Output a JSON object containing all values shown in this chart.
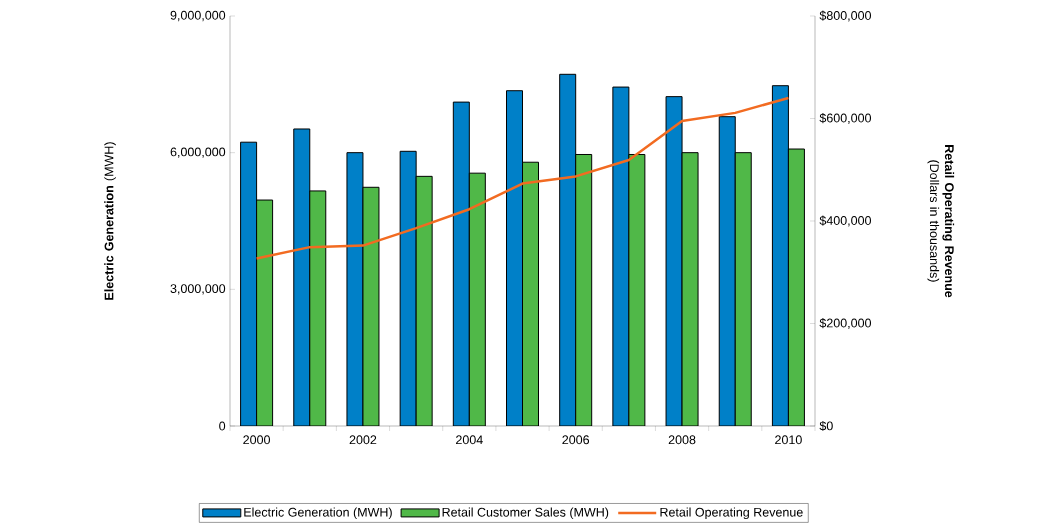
{
  "chart_data": {
    "type": "bar",
    "categories": [
      "2000",
      null,
      "2002",
      null,
      "2004",
      null,
      "2006",
      null,
      "2008",
      null,
      "2010"
    ],
    "series": [
      {
        "name": "Electric Generation (MWH)",
        "color": "#0080c8",
        "values": [
          6230000,
          6520000,
          6000000,
          6030000,
          7110000,
          7360000,
          7720000,
          7440000,
          7230000,
          6790000,
          7470000
        ]
      },
      {
        "name": "Retail Customer Sales (MWH)",
        "color": "#50b848",
        "values": [
          4960000,
          5160000,
          5240000,
          5480000,
          5550000,
          5790000,
          5960000,
          5960000,
          6000000,
          6000000,
          6080000
        ]
      },
      {
        "name": "Retail Operating Revenue",
        "color": "#f26b21",
        "type": "line",
        "axis": "y2",
        "values": [
          327000,
          349000,
          352000,
          386000,
          423000,
          473000,
          487000,
          519000,
          595000,
          611000,
          640000
        ]
      }
    ],
    "ylabel": "**Electric Generation** (MWH)",
    "y2label": "**Retail Operating Revenue** (Dollars in thousands)",
    "ylim": [
      0,
      9000000
    ],
    "yticks": [
      0,
      {
        "value": 3000000,
        "label": "3,000,000"
      },
      {
        "value": 6000000,
        "label": "6,000,000"
      },
      {
        "value": 9000000,
        "label": "9,000,000"
      }
    ],
    "y2lim": [
      0,
      800000
    ],
    "y2ticks": [
      {
        "value": 0,
        "label": "$0"
      },
      {
        "value": 200000,
        "label": "$200,000"
      },
      {
        "value": 400000,
        "label": "$400,000"
      },
      {
        "value": 600000,
        "label": "$600,000"
      },
      {
        "value": 800000,
        "label": "$800,000"
      }
    ],
    "legend": "bottom"
  }
}
